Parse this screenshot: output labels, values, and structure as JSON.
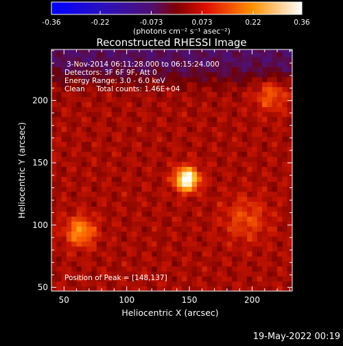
{
  "chart_data": {
    "type": "heatmap",
    "title": "Reconstructed RHESSI Image",
    "xlabel": "Heliocentric X (arcsec)",
    "ylabel": "Heliocentric Y (arcsec)",
    "xlim": [
      40,
      232
    ],
    "ylim": [
      47,
      241
    ],
    "x_ticks": [
      50,
      100,
      150,
      200
    ],
    "y_ticks": [
      50,
      100,
      150,
      200
    ],
    "colorbar": {
      "ticks": [
        "-0.36",
        "-0.22",
        "-0.073",
        "0.073",
        "0.22",
        "0.36"
      ],
      "range": [
        -0.36,
        0.36
      ],
      "units_label": "(photons cm⁻² s⁻¹ asec⁻²)"
    },
    "annotations": [
      "3-Nov-2014 06:11:28.000 to 06:15:24.000",
      "Detectors: 3F 6F 9F, Att 0",
      "Energy Range: 3.0 - 6.0 keV",
      "Clean     Total counts: 1.46E+04"
    ],
    "peak_label": "Position of Peak = [148,137]",
    "peak": {
      "x": 148,
      "y": 137,
      "value": 0.36
    },
    "secondary_sources": [
      {
        "x": 63,
        "y": 95,
        "value": 0.16
      },
      {
        "x": 215,
        "y": 205,
        "value": 0.1
      },
      {
        "x": 195,
        "y": 105,
        "value": 0.08
      }
    ],
    "colors": {
      "background": "#000000",
      "negative_region": "#3a1050"
    }
  },
  "footer": {
    "timestamp": "19-May-2022 00:19"
  }
}
